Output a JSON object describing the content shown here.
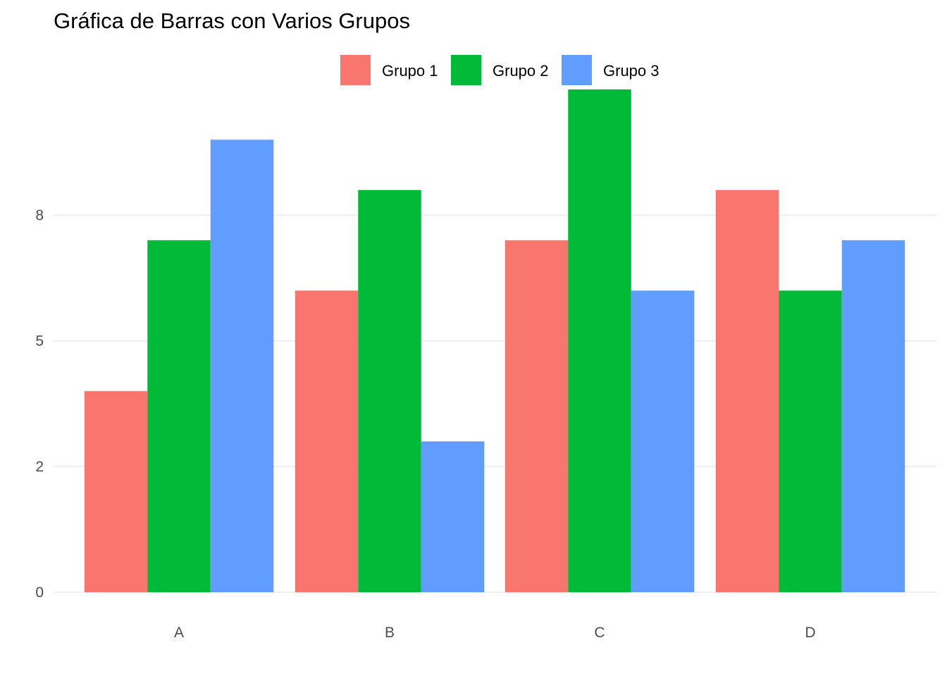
{
  "chart_data": {
    "type": "bar",
    "title": "Gráfica de Barras con Varios Grupos",
    "categories": [
      "A",
      "B",
      "C",
      "D"
    ],
    "series": [
      {
        "name": "Grupo 1",
        "color": "#F8766D",
        "values": [
          4,
          6,
          7,
          8
        ]
      },
      {
        "name": "Grupo 2",
        "color": "#00BA38",
        "values": [
          7,
          8,
          10,
          6
        ]
      },
      {
        "name": "Grupo 3",
        "color": "#619CFF",
        "values": [
          9,
          3,
          6,
          7
        ]
      }
    ],
    "y_ticks": [
      {
        "value": 0,
        "label": "0"
      },
      {
        "value": 2.5,
        "label": "2"
      },
      {
        "value": 5,
        "label": "5"
      },
      {
        "value": 7.5,
        "label": "8"
      }
    ],
    "ylim": [
      0,
      10
    ],
    "xlabel": "",
    "ylabel": "",
    "grid": true,
    "legend_position": "top"
  }
}
